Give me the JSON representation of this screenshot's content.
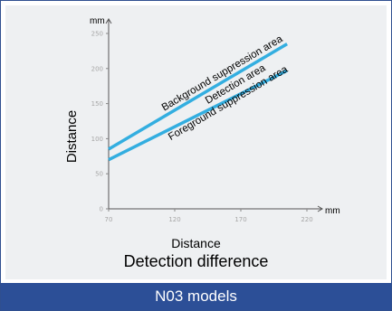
{
  "chart_data": {
    "type": "line",
    "title": "Detection difference",
    "xlabel": "Distance",
    "ylabel": "Distance",
    "x_unit": "mm",
    "y_unit": "mm",
    "xlim": [
      70,
      220
    ],
    "ylim": [
      0,
      250
    ],
    "x_ticks": [
      "70",
      "120",
      "170",
      "220"
    ],
    "y_ticks": [
      "0",
      "50",
      "100",
      "150",
      "200",
      "250"
    ],
    "grid": false,
    "series": [
      {
        "x": [
          70,
          205
        ],
        "values": [
          85,
          235
        ]
      },
      {
        "x": [
          70,
          205
        ],
        "values": [
          70,
          197
        ]
      }
    ],
    "annotations": [
      "Background suppression area",
      "Detection area",
      "Foreground suppression area"
    ],
    "line_color": "#33aee0"
  },
  "footer": {
    "label": "N03 models"
  },
  "colors": {
    "panel_bg": "#eef0f2",
    "footer_bg": "#2c4f97",
    "border": "#2f4f8f"
  }
}
